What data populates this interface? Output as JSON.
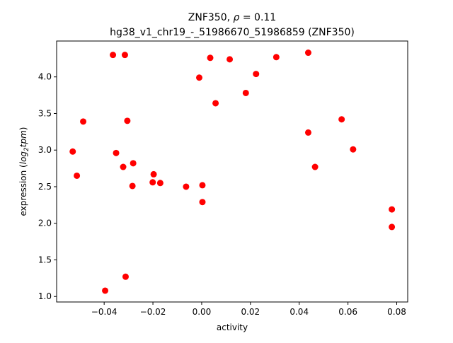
{
  "chart_data": {
    "type": "scatter",
    "title_line1_prefix": "ZNF350, ",
    "title_rho_symbol": "ρ",
    "title_rho_value": " = 0.11",
    "title_line2": "hg38_v1_chr19_-_51986670_51986859 (ZNF350)",
    "xlabel": "activity",
    "ylabel_prefix": "expression (",
    "ylabel_log": "log",
    "ylabel_sub": "2",
    "ylabel_tpm": "tpm",
    "ylabel_suffix": ")",
    "xlim": [
      -0.0595,
      0.0845
    ],
    "ylim": [
      0.925,
      4.49
    ],
    "xticks": [
      -0.04,
      -0.02,
      0.0,
      0.02,
      0.04,
      0.06,
      0.08
    ],
    "xtick_labels": [
      "−0.04",
      "−0.02",
      "0.00",
      "0.02",
      "0.04",
      "0.06",
      "0.08"
    ],
    "yticks": [
      1.0,
      1.5,
      2.0,
      2.5,
      3.0,
      3.5,
      4.0
    ],
    "ytick_labels": [
      "1.0",
      "1.5",
      "2.0",
      "2.5",
      "3.0",
      "3.5",
      "4.0"
    ],
    "grid": false,
    "legend": "none",
    "point_color": "#ff0000",
    "points": [
      {
        "x": -0.0529,
        "y": 2.98
      },
      {
        "x": -0.0512,
        "y": 2.65
      },
      {
        "x": -0.0486,
        "y": 3.39
      },
      {
        "x": -0.0396,
        "y": 1.08
      },
      {
        "x": -0.0364,
        "y": 4.3
      },
      {
        "x": -0.0351,
        "y": 2.96
      },
      {
        "x": -0.0322,
        "y": 2.77
      },
      {
        "x": -0.0315,
        "y": 4.3
      },
      {
        "x": -0.0312,
        "y": 1.27
      },
      {
        "x": -0.0305,
        "y": 3.4
      },
      {
        "x": -0.0284,
        "y": 2.51
      },
      {
        "x": -0.0281,
        "y": 2.82
      },
      {
        "x": -0.0201,
        "y": 2.56
      },
      {
        "x": -0.0197,
        "y": 2.67
      },
      {
        "x": -0.017,
        "y": 2.55
      },
      {
        "x": -0.0064,
        "y": 2.5
      },
      {
        "x": -0.001,
        "y": 3.99
      },
      {
        "x": 0.0003,
        "y": 2.52
      },
      {
        "x": 0.0003,
        "y": 2.29
      },
      {
        "x": 0.0035,
        "y": 4.26
      },
      {
        "x": 0.0057,
        "y": 3.64
      },
      {
        "x": 0.0115,
        "y": 4.24
      },
      {
        "x": 0.0181,
        "y": 3.78
      },
      {
        "x": 0.0223,
        "y": 4.04
      },
      {
        "x": 0.0306,
        "y": 4.27
      },
      {
        "x": 0.0437,
        "y": 4.33
      },
      {
        "x": 0.0437,
        "y": 3.24
      },
      {
        "x": 0.0465,
        "y": 2.77
      },
      {
        "x": 0.0574,
        "y": 3.42
      },
      {
        "x": 0.0621,
        "y": 3.01
      },
      {
        "x": 0.078,
        "y": 2.19
      },
      {
        "x": 0.078,
        "y": 1.95
      }
    ]
  }
}
